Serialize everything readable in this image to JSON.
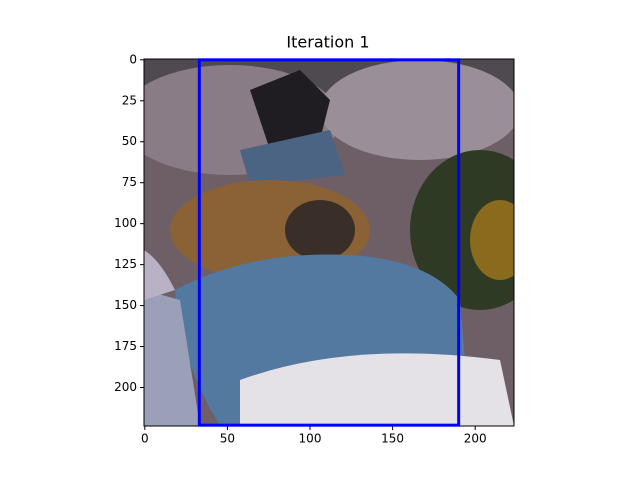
{
  "chart_data": {
    "type": "image",
    "title": "Iteration 1",
    "xlim": [
      -0.5,
      223.5
    ],
    "ylim": [
      223.5,
      -0.5
    ],
    "xticks": [
      0,
      50,
      100,
      150,
      200
    ],
    "yticks": [
      0,
      25,
      50,
      75,
      100,
      125,
      150,
      175,
      200
    ],
    "box": {
      "x0": 33,
      "y0": 0,
      "x1": 190,
      "y1": 223,
      "color": "#0000ff"
    }
  }
}
